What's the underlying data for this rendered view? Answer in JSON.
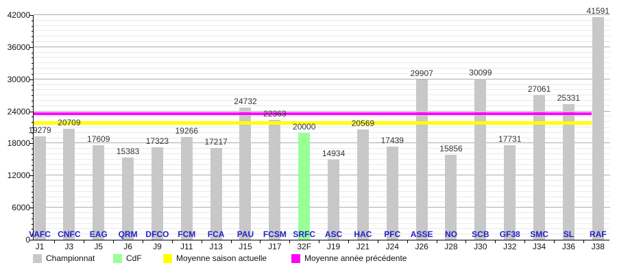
{
  "chart_data": {
    "type": "bar",
    "title": "",
    "xlabel": "",
    "ylabel": "",
    "ylim": [
      0,
      42000
    ],
    "ytick_step": 6000,
    "minor_grid_step": 1000,
    "grid": "on",
    "legend_position": "bottom",
    "categories": [
      "J1",
      "J3",
      "J5",
      "J6",
      "J9",
      "J11",
      "J13",
      "J15",
      "J17",
      "32F",
      "J19",
      "J21",
      "J24",
      "J26",
      "J28",
      "J30",
      "J32",
      "J34",
      "J36",
      "J38"
    ],
    "teams": [
      "VAFC",
      "CNFC",
      "EAG",
      "QRM",
      "DFCO",
      "FCM",
      "FCA",
      "PAU",
      "FCSM",
      "SRFC",
      "ASC",
      "HAC",
      "PFC",
      "ASSE",
      "NO",
      "SCB",
      "GF38",
      "SMC",
      "SL",
      "RAF"
    ],
    "values": [
      19279,
      20709,
      17609,
      15383,
      17323,
      19266,
      17217,
      24732,
      22363,
      20000,
      14934,
      20569,
      17439,
      29907,
      15856,
      30099,
      17731,
      27061,
      25331,
      41591
    ],
    "cdf_index": 9,
    "colors": {
      "championnat": "#c8c8c8",
      "cdf": "#99ff99",
      "team_label": "#2222cc"
    },
    "reference_lines": [
      {
        "name": "Moyenne saison actuelle",
        "value": 21810,
        "color": "#ffff00",
        "thickness": 5
      },
      {
        "name": "Moyenne année précédente",
        "value": 23500,
        "color": "#ff00ff",
        "thickness": 4
      }
    ]
  },
  "legend": {
    "items": [
      {
        "label": "Championnat",
        "color": "#c8c8c8"
      },
      {
        "label": "CdF",
        "color": "#99ff99"
      },
      {
        "label": "Moyenne saison actuelle",
        "color": "#ffff00"
      },
      {
        "label": "Moyenne année précédente",
        "color": "#ff00ff"
      }
    ]
  }
}
